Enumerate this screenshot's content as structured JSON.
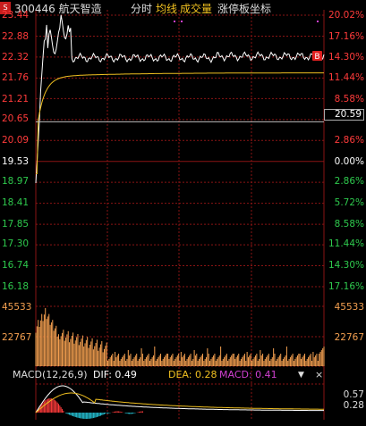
{
  "header": {
    "badge": "S",
    "code_name": "300446 航天智造",
    "tab_time": "分时",
    "tab_avg": "均线",
    "tab_vol": "成交量",
    "tab_limit": "涨停板坐标"
  },
  "price_axis": {
    "left_labels": [
      "23.44",
      "22.88",
      "22.32",
      "21.76",
      "21.21",
      "20.65",
      "20.09",
      "19.53",
      "18.97",
      "18.41",
      "17.85",
      "17.30",
      "16.74",
      "16.18"
    ],
    "right_labels": [
      "20.02%",
      "17.16%",
      "14.30%",
      "11.44%",
      "8.58%",
      "5.72%",
      "2.86%",
      "0.00%",
      "2.86%",
      "5.72%",
      "8.58%",
      "11.44%",
      "14.30%",
      "17.16%"
    ],
    "current_price": "20.59",
    "marker": "B"
  },
  "volume_axis": {
    "max_label": "45533",
    "mid_label": "22767",
    "max_label_right": "45533",
    "mid_label_right": "22767"
  },
  "macd": {
    "title": "MACD(12,26,9)",
    "dif_label": "DIF: 0.49",
    "dea_label": "DEA: 0.28",
    "macd_label": "MACD: 0.41",
    "right_top": "0.57",
    "right_bottom": "0.28"
  },
  "colors": {
    "up": "#ff3b3b",
    "down": "#2ec94d",
    "neutral": "#ffffff",
    "avg_line": "#f0c020",
    "volume": "#f5a050",
    "grid": "#8a1414",
    "macd_dif": "#ffffff",
    "macd_dea": "#f0c020",
    "macd_neg": "#26c5d8",
    "macd_label": "#d040d0"
  }
}
